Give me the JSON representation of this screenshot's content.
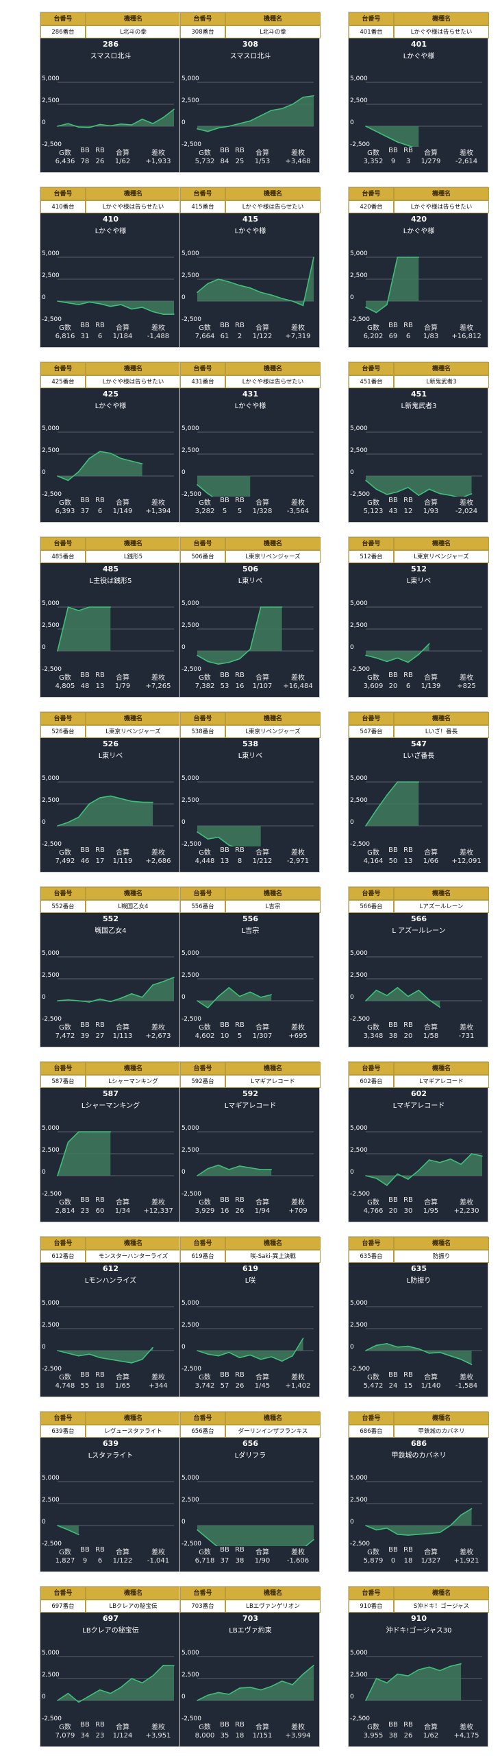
{
  "labels": {
    "id_header": "台番号",
    "name_header": "機種名",
    "g": "G数",
    "bb": "BB",
    "rb": "RB",
    "gassan": "合算",
    "samai": "差枚"
  },
  "axis": {
    "ticks": [
      5000,
      2500,
      0,
      -2500
    ],
    "tick_labels": [
      "5,000",
      "2,500",
      "0",
      "-2,500"
    ],
    "ymin": -3000,
    "ymax": 5500
  },
  "colors": {
    "card_bg": "#222936",
    "line": "#3fbf7a",
    "fill": "#3e7a5d",
    "grid": "#59606b",
    "header_gold": "#d4ae3b"
  },
  "machines": [
    {
      "id": "286番台",
      "name": "L北斗の拳",
      "number": "286",
      "short": "スマスロ北斗",
      "g": "6,436",
      "bb": "78",
      "rb": "26",
      "gassan": "1/62",
      "samai": "+1,933",
      "x": [
        0,
        1,
        2,
        3,
        4,
        5,
        6,
        7,
        8,
        9,
        10,
        11
      ],
      "y": [
        0,
        300,
        -100,
        -150,
        200,
        50,
        250,
        150,
        800,
        300,
        1000,
        1933
      ]
    },
    {
      "id": "308番台",
      "name": "L北斗の拳",
      "number": "308",
      "short": "スマスロ北斗",
      "g": "5,732",
      "bb": "84",
      "rb": "25",
      "gassan": "1/53",
      "samai": "+3,468",
      "x": [
        0,
        1,
        2,
        3,
        4,
        5,
        6,
        7,
        8,
        9,
        10,
        11
      ],
      "y": [
        -300,
        -600,
        -200,
        0,
        300,
        600,
        1200,
        1800,
        2000,
        2500,
        3300,
        3468
      ]
    },
    {
      "id": "401番台",
      "name": "Lかぐや様は告らせたい",
      "number": "401",
      "short": "Lかぐや様",
      "g": "3,352",
      "bb": "9",
      "rb": "3",
      "gassan": "1/279",
      "samai": "-2,614",
      "x": [
        0,
        1,
        2,
        3,
        4,
        5
      ],
      "y": [
        0,
        -600,
        -1200,
        -1800,
        -2200,
        -2614
      ]
    },
    {
      "id": "410番台",
      "name": "Lかぐや様は告らせたい",
      "number": "410",
      "short": "Lかぐや様",
      "g": "6,816",
      "bb": "31",
      "rb": "6",
      "gassan": "1/184",
      "samai": "-1,488",
      "x": [
        0,
        1,
        2,
        3,
        4,
        5,
        6,
        7,
        8,
        9,
        10,
        11
      ],
      "y": [
        0,
        -200,
        -400,
        -100,
        -300,
        -600,
        -400,
        -900,
        -700,
        -1200,
        -1500,
        -1488
      ]
    },
    {
      "id": "415番台",
      "name": "Lかぐや様は告らせたい",
      "number": "415",
      "short": "Lかぐや様",
      "g": "7,664",
      "bb": "61",
      "rb": "2",
      "gassan": "1/122",
      "samai": "+7,319",
      "x": [
        0,
        1,
        2,
        3,
        4,
        5,
        6,
        7,
        8,
        9,
        10,
        11
      ],
      "y": [
        1000,
        2000,
        2500,
        2200,
        1800,
        1500,
        1000,
        700,
        300,
        0,
        -500,
        5000
      ]
    },
    {
      "id": "420番台",
      "name": "Lかぐや様は告らせたい",
      "number": "420",
      "short": "Lかぐや様",
      "g": "6,202",
      "bb": "69",
      "rb": "6",
      "gassan": "1/83",
      "samai": "+16,812",
      "x": [
        0,
        1,
        2,
        3,
        4,
        5
      ],
      "y": [
        -700,
        -1300,
        -400,
        5000,
        5000,
        5000
      ]
    },
    {
      "id": "425番台",
      "name": "Lかぐや様は告らせたい",
      "number": "425",
      "short": "Lかぐや様",
      "g": "6,393",
      "bb": "37",
      "rb": "6",
      "gassan": "1/149",
      "samai": "+1,394",
      "x": [
        0,
        1,
        2,
        3,
        4,
        5,
        6,
        7,
        8
      ],
      "y": [
        0,
        -500,
        500,
        2000,
        2800,
        2600,
        2000,
        1700,
        1394
      ]
    },
    {
      "id": "431番台",
      "name": "Lかぐや様は告らせたい",
      "number": "431",
      "short": "Lかぐや様",
      "g": "3,282",
      "bb": "5",
      "rb": "5",
      "gassan": "1/328",
      "samai": "-3,564",
      "x": [
        0,
        1,
        2,
        3,
        4,
        5
      ],
      "y": [
        -1000,
        -2000,
        -2800,
        -3300,
        -3500,
        -3564
      ]
    },
    {
      "id": "451番台",
      "name": "L新鬼武者3",
      "number": "451",
      "short": "L新鬼武者3",
      "g": "5,123",
      "bb": "43",
      "rb": "12",
      "gassan": "1/93",
      "samai": "-2,024",
      "x": [
        0,
        1,
        2,
        3,
        4,
        5,
        6,
        7,
        8,
        9,
        10
      ],
      "y": [
        -500,
        -1500,
        -2100,
        -1800,
        -1300,
        -2200,
        -1500,
        -2000,
        -2200,
        -2500,
        -2024
      ]
    },
    {
      "id": "485番台",
      "name": "L銭形5",
      "number": "485",
      "short": "L主役は銭形5",
      "g": "4,805",
      "bb": "48",
      "rb": "13",
      "gassan": "1/79",
      "samai": "+7,265",
      "x": [
        0,
        1,
        2,
        3,
        4,
        5
      ],
      "y": [
        0,
        5000,
        4600,
        5000,
        5000,
        5000
      ]
    },
    {
      "id": "506番台",
      "name": "L東京リベンジャーズ",
      "number": "506",
      "short": "L東リベ",
      "g": "7,382",
      "bb": "53",
      "rb": "16",
      "gassan": "1/107",
      "samai": "+16,484",
      "x": [
        0,
        1,
        2,
        3,
        4,
        5,
        6,
        7,
        8
      ],
      "y": [
        -500,
        -1200,
        -1500,
        -1300,
        -900,
        200,
        5000,
        5000,
        5000
      ]
    },
    {
      "id": "512番台",
      "name": "L東京リベンジャーズ",
      "number": "512",
      "short": "L東リベ",
      "g": "3,609",
      "bb": "20",
      "rb": "6",
      "gassan": "1/139",
      "samai": "+825",
      "x": [
        0,
        1,
        2,
        3,
        4,
        5,
        6
      ],
      "y": [
        -500,
        -800,
        -1200,
        -800,
        -1300,
        -400,
        825
      ]
    },
    {
      "id": "526番台",
      "name": "L東京リベンジャーズ",
      "number": "526",
      "short": "L東リベ",
      "g": "7,492",
      "bb": "46",
      "rb": "17",
      "gassan": "1/119",
      "samai": "+2,686",
      "x": [
        0,
        1,
        2,
        3,
        4,
        5,
        6,
        7,
        8,
        9
      ],
      "y": [
        0,
        400,
        1000,
        2500,
        3200,
        3400,
        3100,
        2800,
        2700,
        2686
      ]
    },
    {
      "id": "538番台",
      "name": "L東京リベンジャーズ",
      "number": "538",
      "short": "L東リベ",
      "g": "4,448",
      "bb": "13",
      "rb": "8",
      "gassan": "1/212",
      "samai": "-2,971",
      "x": [
        0,
        1,
        2,
        3,
        4,
        5,
        6
      ],
      "y": [
        -700,
        -1500,
        -1300,
        -2200,
        -2600,
        -3000,
        -2971
      ]
    },
    {
      "id": "547番台",
      "name": "Lいざ！番長",
      "number": "547",
      "short": "Lいざ番長",
      "g": "4,164",
      "bb": "50",
      "rb": "13",
      "gassan": "1/66",
      "samai": "+12,091",
      "x": [
        0,
        1,
        2,
        3,
        4,
        5
      ],
      "y": [
        0,
        1800,
        3500,
        5000,
        5000,
        5000
      ]
    },
    {
      "id": "552番台",
      "name": "L戦国乙女4",
      "number": "552",
      "short": "戦国乙女4",
      "g": "7,472",
      "bb": "39",
      "rb": "27",
      "gassan": "1/113",
      "samai": "+2,673",
      "x": [
        0,
        1,
        2,
        3,
        4,
        5,
        6,
        7,
        8,
        9,
        10,
        11
      ],
      "y": [
        0,
        100,
        0,
        -150,
        200,
        -100,
        300,
        800,
        400,
        1800,
        2200,
        2673
      ]
    },
    {
      "id": "556番台",
      "name": "L吉宗",
      "number": "556",
      "short": "L吉宗",
      "g": "4,602",
      "bb": "10",
      "rb": "5",
      "gassan": "1/307",
      "samai": "+695",
      "x": [
        0,
        1,
        2,
        3,
        4,
        5,
        6,
        7
      ],
      "y": [
        0,
        -800,
        500,
        1500,
        500,
        1000,
        400,
        695
      ]
    },
    {
      "id": "566番台",
      "name": "Lアズールレーン",
      "number": "566",
      "short": "L アズールレーン",
      "g": "3,348",
      "bb": "38",
      "rb": "20",
      "gassan": "1/58",
      "samai": "-731",
      "x": [
        0,
        1,
        2,
        3,
        4,
        5,
        6,
        7
      ],
      "y": [
        0,
        1200,
        600,
        1500,
        500,
        1200,
        100,
        -731
      ]
    },
    {
      "id": "587番台",
      "name": "Lシャーマンキング",
      "number": "587",
      "short": "Lシャーマンキング",
      "g": "2,814",
      "bb": "23",
      "rb": "60",
      "gassan": "1/34",
      "samai": "+12,337",
      "x": [
        0,
        1,
        2,
        3,
        4,
        5
      ],
      "y": [
        0,
        3800,
        5000,
        5000,
        5000,
        5000
      ]
    },
    {
      "id": "592番台",
      "name": "Lマギアレコード",
      "number": "592",
      "short": "Lマギアレコード",
      "g": "3,929",
      "bb": "16",
      "rb": "26",
      "gassan": "1/94",
      "samai": "+709",
      "x": [
        0,
        1,
        2,
        3,
        4,
        5,
        6,
        7
      ],
      "y": [
        0,
        800,
        1200,
        700,
        1100,
        900,
        700,
        709
      ]
    },
    {
      "id": "602番台",
      "name": "Lマギアレコード",
      "number": "602",
      "short": "Lマギアレコード",
      "g": "4,766",
      "bb": "20",
      "rb": "30",
      "gassan": "1/95",
      "samai": "+2,230",
      "x": [
        0,
        1,
        2,
        3,
        4,
        5,
        6,
        7,
        8,
        9,
        10,
        11
      ],
      "y": [
        0,
        -300,
        -1100,
        200,
        -400,
        600,
        1800,
        1500,
        1900,
        1300,
        2500,
        2230
      ]
    },
    {
      "id": "612番台",
      "name": "モンスターハンターライズ",
      "number": "612",
      "short": "Lモンハンライズ",
      "g": "4,748",
      "bb": "55",
      "rb": "18",
      "gassan": "1/65",
      "samai": "+344",
      "x": [
        0,
        1,
        2,
        3,
        4,
        5,
        6,
        7,
        8,
        9
      ],
      "y": [
        0,
        -300,
        -600,
        -400,
        -800,
        -1000,
        -1200,
        -1400,
        -1000,
        344
      ]
    },
    {
      "id": "619番台",
      "name": "咲-Saki-巽上決戦",
      "number": "619",
      "short": "L咲",
      "g": "3,742",
      "bb": "57",
      "rb": "26",
      "gassan": "1/45",
      "samai": "+1,402",
      "x": [
        0,
        1,
        2,
        3,
        4,
        5,
        6,
        7,
        8,
        9,
        10
      ],
      "y": [
        0,
        -400,
        -600,
        -200,
        -800,
        -500,
        -1000,
        -700,
        -1200,
        -600,
        1402
      ]
    },
    {
      "id": "635番台",
      "name": "防振り",
      "number": "635",
      "short": "L防振り",
      "g": "5,472",
      "bb": "24",
      "rb": "15",
      "gassan": "1/140",
      "samai": "-1,584",
      "x": [
        0,
        1,
        2,
        3,
        4,
        5,
        6,
        7,
        8,
        9,
        10
      ],
      "y": [
        0,
        600,
        800,
        400,
        500,
        200,
        -300,
        -200,
        -600,
        -1000,
        -1584
      ]
    },
    {
      "id": "639番台",
      "name": "レヴュースタァライト",
      "number": "639",
      "short": "Lスタァライト",
      "g": "1,827",
      "bb": "9",
      "rb": "6",
      "gassan": "1/122",
      "samai": "-1,041",
      "x": [
        0,
        1,
        2
      ],
      "y": [
        0,
        -500,
        -1041
      ]
    },
    {
      "id": "656番台",
      "name": "ダーリンインザフランキス",
      "number": "656",
      "short": "Lダリフラ",
      "g": "6,718",
      "bb": "37",
      "rb": "38",
      "gassan": "1/90",
      "samai": "-1,606",
      "x": [
        0,
        1,
        2,
        3,
        4,
        5,
        6,
        7,
        8,
        9,
        10,
        11
      ],
      "y": [
        -500,
        -1500,
        -2500,
        -2800,
        -2600,
        -2800,
        -2500,
        -2700,
        -2500,
        -2800,
        -2600,
        -1606
      ]
    },
    {
      "id": "686番台",
      "name": "甲鉄城のカバネリ",
      "number": "686",
      "short": "甲鉄城のカバネリ",
      "g": "5,879",
      "bb": "0",
      "rb": "18",
      "gassan": "1/327",
      "samai": "+1,921",
      "x": [
        0,
        1,
        2,
        3,
        4,
        5,
        6,
        7,
        8,
        9,
        10
      ],
      "y": [
        0,
        -500,
        -300,
        -1000,
        -1100,
        -1000,
        -900,
        -800,
        0,
        1200,
        1921
      ]
    },
    {
      "id": "697番台",
      "name": "LBクレアの秘宝伝",
      "number": "697",
      "short": "LBクレアの秘宝伝",
      "g": "7,079",
      "bb": "34",
      "rb": "23",
      "gassan": "1/124",
      "samai": "+3,951",
      "x": [
        0,
        1,
        2,
        3,
        4,
        5,
        6,
        7,
        8,
        9,
        10,
        11
      ],
      "y": [
        0,
        800,
        -200,
        500,
        1200,
        800,
        1500,
        2500,
        2000,
        2800,
        4000,
        3951
      ]
    },
    {
      "id": "703番台",
      "name": "LBエヴァンゲリオン",
      "number": "703",
      "short": "LBエヴァ約束",
      "g": "8,000",
      "bb": "35",
      "rb": "18",
      "gassan": "1/151",
      "samai": "+3,994",
      "x": [
        0,
        1,
        2,
        3,
        4,
        5,
        6,
        7,
        8,
        9,
        10,
        11
      ],
      "y": [
        0,
        600,
        900,
        700,
        1400,
        1500,
        1200,
        1600,
        2200,
        1800,
        3000,
        3994
      ]
    },
    {
      "id": "910番台",
      "name": "S沖ドキ！ゴージャス",
      "number": "910",
      "short": "沖ドキ!ゴージャス30",
      "g": "3,955",
      "bb": "38",
      "rb": "26",
      "gassan": "1/62",
      "samai": "+4,175",
      "x": [
        0,
        1,
        2,
        3,
        4,
        5,
        6,
        7,
        8,
        9
      ],
      "y": [
        0,
        2500,
        2000,
        3000,
        2800,
        3500,
        3800,
        3400,
        3900,
        4175
      ]
    }
  ]
}
